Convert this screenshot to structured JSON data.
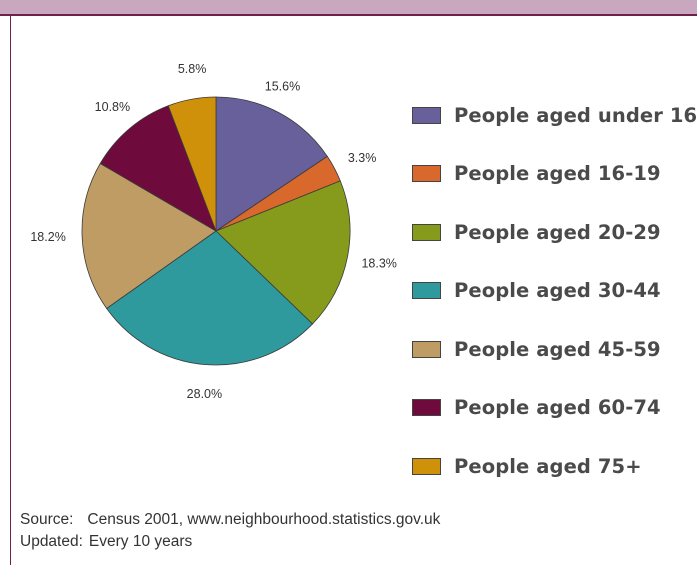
{
  "chart_data": {
    "type": "pie",
    "categories": [
      "People aged under 16",
      "People aged 16-19",
      "People aged 20-29",
      "People aged 30-44",
      "People aged 45-59",
      "People aged 60-74",
      "People aged 75+"
    ],
    "values": [
      15.6,
      3.3,
      18.3,
      28.0,
      18.2,
      10.8,
      5.8
    ],
    "value_labels": [
      "15.6%",
      "3.3%",
      "18.3%",
      "28.0%",
      "18.2%",
      "10.8%",
      "5.8%"
    ],
    "colors": [
      "#67609a",
      "#d8682c",
      "#869a1c",
      "#2e9a9e",
      "#bf9c64",
      "#6e0a3c",
      "#cf910a"
    ],
    "legend_position": "right",
    "start_angle": "12 o'clock",
    "direction": "clockwise"
  },
  "footer": {
    "source_label": "Source:",
    "source_value": "Census 2001, www.neighbourhood.statistics.gov.uk",
    "updated_label": "Updated:",
    "updated_value": "Every 10 years"
  },
  "colors": {
    "top_band": "#c9a7bf",
    "frame": "#6e1f4c"
  }
}
